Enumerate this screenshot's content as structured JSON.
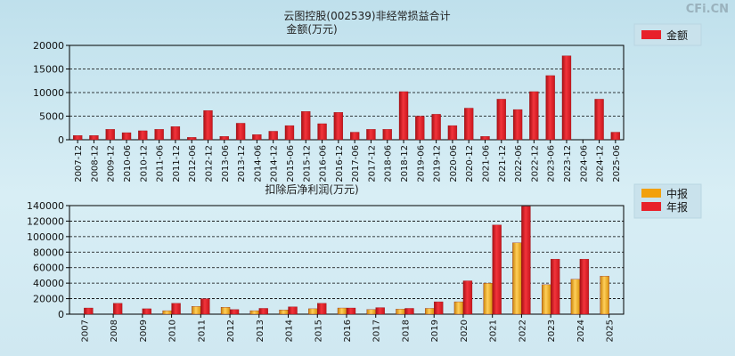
{
  "watermark": "CFi.CN",
  "colors": {
    "red": "#e8212a",
    "orange": "#f2a00b",
    "grid": "#000000",
    "legend_bg": "#c9e2ec"
  },
  "chart_data": [
    {
      "type": "bar",
      "title": "云图控股(002539)非经常损益合计",
      "ylabel": "金额(万元)",
      "ylim": [
        0,
        20000
      ],
      "yticks": [
        0,
        5000,
        10000,
        15000,
        20000
      ],
      "grid": true,
      "legend_position": "top-right",
      "categories": [
        "2007-12",
        "2008-12",
        "2009-12",
        "2010-06",
        "2010-12",
        "2011-06",
        "2011-12",
        "2012-06",
        "2012-12",
        "2013-06",
        "2013-12",
        "2014-06",
        "2014-12",
        "2015-06",
        "2015-12",
        "2016-06",
        "2016-12",
        "2017-06",
        "2017-12",
        "2018-06",
        "2018-12",
        "2019-06",
        "2019-12",
        "2020-06",
        "2020-12",
        "2021-06",
        "2021-12",
        "2022-06",
        "2022-12",
        "2023-06",
        "2023-12",
        "2024-06",
        "2024-12",
        "2025-06"
      ],
      "series": [
        {
          "name": "金额",
          "color": "red",
          "values": [
            900,
            900,
            2200,
            1500,
            1900,
            2200,
            2800,
            500,
            6200,
            700,
            3500,
            1100,
            1800,
            3000,
            6000,
            3400,
            5800,
            1600,
            2200,
            2200,
            10200,
            5000,
            5400,
            3000,
            6700,
            700,
            8600,
            6400,
            10200,
            13600,
            17800,
            0,
            8600,
            1600
          ]
        }
      ]
    },
    {
      "type": "bar",
      "title": "扣除后净利润(万元)",
      "ylim": [
        0,
        140000
      ],
      "yticks": [
        0,
        20000,
        40000,
        60000,
        80000,
        100000,
        120000,
        140000
      ],
      "grid": true,
      "legend_position": "top-right",
      "categories": [
        "2007",
        "2008",
        "2009",
        "2010",
        "2011",
        "2012",
        "2013",
        "2014",
        "2015",
        "2016",
        "2017",
        "2018",
        "2019",
        "2020",
        "2021",
        "2022",
        "2023",
        "2024",
        "2025"
      ],
      "series": [
        {
          "name": "中报",
          "color": "orange",
          "values": [
            0,
            0,
            0,
            4500,
            10000,
            9000,
            4500,
            5500,
            7000,
            8000,
            6000,
            6500,
            7500,
            16000,
            40000,
            92000,
            38000,
            45000,
            49000
          ]
        },
        {
          "name": "年报",
          "color": "red",
          "values": [
            8000,
            14000,
            7000,
            14000,
            20000,
            6000,
            7500,
            9500,
            14000,
            8000,
            8500,
            7500,
            16000,
            43000,
            115000,
            139000,
            71000,
            71000,
            null
          ]
        }
      ]
    }
  ]
}
